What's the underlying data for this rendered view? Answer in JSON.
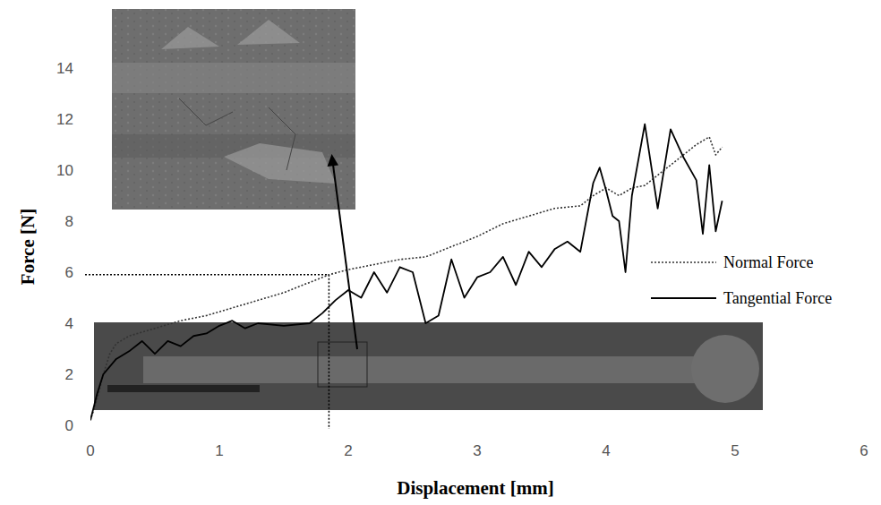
{
  "chart_data": {
    "type": "line",
    "x_label": "Displacement [mm]",
    "y_label": "Force [N]",
    "xlim": [
      0,
      6
    ],
    "xticks": [
      0,
      1,
      2,
      3,
      4,
      5,
      6
    ],
    "ylim": [
      0,
      14
    ],
    "yticks": [
      0,
      2,
      4,
      6,
      8,
      10,
      12,
      14
    ],
    "grid": false,
    "legend": "right",
    "critical_point": {
      "x": 1.85,
      "y": 5.9
    },
    "series": [
      {
        "name": "Normal Force",
        "color": "#333333",
        "line_style": "dotted",
        "x": [
          0,
          0.05,
          0.1,
          0.15,
          0.2,
          0.3,
          0.5,
          0.7,
          0.9,
          1.1,
          1.3,
          1.5,
          1.7,
          1.85,
          2.0,
          2.2,
          2.4,
          2.6,
          2.8,
          3.0,
          3.2,
          3.4,
          3.6,
          3.8,
          3.9,
          4.0,
          4.1,
          4.2,
          4.3,
          4.4,
          4.5,
          4.6,
          4.7,
          4.8,
          4.85,
          4.9
        ],
        "values": [
          0.2,
          1.0,
          2.0,
          2.8,
          3.2,
          3.5,
          3.8,
          4.1,
          4.3,
          4.6,
          4.9,
          5.2,
          5.6,
          5.9,
          6.1,
          6.3,
          6.5,
          6.6,
          7.0,
          7.4,
          7.9,
          8.2,
          8.5,
          8.6,
          9.0,
          9.3,
          9.0,
          9.3,
          9.4,
          9.8,
          10.2,
          10.6,
          11.0,
          11.3,
          10.6,
          10.9
        ]
      },
      {
        "name": "Tangential Force",
        "color": "#000000",
        "line_style": "solid",
        "x": [
          0,
          0.05,
          0.1,
          0.2,
          0.3,
          0.4,
          0.5,
          0.6,
          0.7,
          0.8,
          0.9,
          1.0,
          1.1,
          1.2,
          1.3,
          1.5,
          1.7,
          1.8,
          1.9,
          2.0,
          2.1,
          2.2,
          2.3,
          2.4,
          2.5,
          2.6,
          2.7,
          2.8,
          2.9,
          3.0,
          3.1,
          3.2,
          3.3,
          3.4,
          3.5,
          3.6,
          3.7,
          3.8,
          3.9,
          3.95,
          4.0,
          4.05,
          4.1,
          4.15,
          4.2,
          4.3,
          4.4,
          4.5,
          4.6,
          4.7,
          4.75,
          4.8,
          4.85,
          4.9
        ],
        "values": [
          0.2,
          1.2,
          2.0,
          2.6,
          2.9,
          3.3,
          2.8,
          3.3,
          3.1,
          3.5,
          3.6,
          3.9,
          4.1,
          3.8,
          4.0,
          3.9,
          4.0,
          4.4,
          4.9,
          5.3,
          5.0,
          6.0,
          5.2,
          6.2,
          6.0,
          4.0,
          4.3,
          6.5,
          5.0,
          5.8,
          6.0,
          6.6,
          5.5,
          6.8,
          6.2,
          6.9,
          7.2,
          6.8,
          9.5,
          10.1,
          9.2,
          8.2,
          8.0,
          6.0,
          9.0,
          11.8,
          8.5,
          11.6,
          10.5,
          9.6,
          7.5,
          10.2,
          7.6,
          8.8
        ]
      }
    ]
  }
}
